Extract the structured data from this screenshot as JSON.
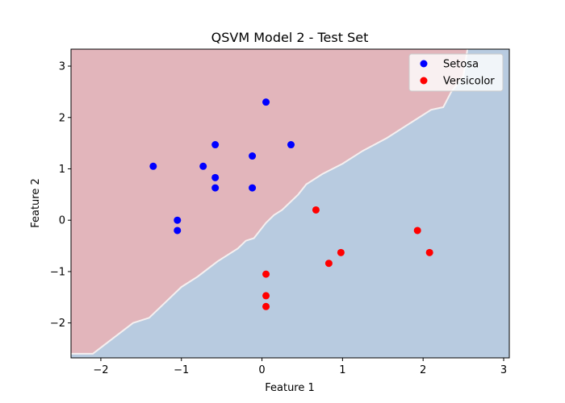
{
  "chart_data": {
    "type": "scatter",
    "title": "QSVM Model 2 - Test Set",
    "xlabel": "Feature 1",
    "ylabel": "Feature 2",
    "xlim": [
      -2.37,
      3.07
    ],
    "ylim": [
      -2.68,
      3.33
    ],
    "xticks": [
      -2,
      -1,
      0,
      1,
      2,
      3
    ],
    "yticks": [
      -2,
      -1,
      0,
      1,
      2,
      3
    ],
    "xtick_labels": [
      "−2",
      "−1",
      "0",
      "1",
      "2",
      "3"
    ],
    "ytick_labels": [
      "−2",
      "−1",
      "0",
      "1",
      "2",
      "3"
    ],
    "legend_position": "top-right",
    "decision_boundary": {
      "x": [
        -2.37,
        -2.1,
        -1.85,
        -1.6,
        -1.4,
        -1.2,
        -1.0,
        -0.8,
        -0.55,
        -0.3,
        -0.2,
        -0.1,
        0.0,
        0.05,
        0.15,
        0.25,
        0.45,
        0.55,
        0.75,
        1.0,
        1.25,
        1.55,
        1.85,
        2.1,
        2.25,
        2.35,
        2.5,
        2.55
      ],
      "y": [
        -2.6,
        -2.6,
        -2.3,
        -2.0,
        -1.9,
        -1.6,
        -1.3,
        -1.1,
        -0.8,
        -0.55,
        -0.4,
        -0.35,
        -0.15,
        -0.05,
        0.1,
        0.2,
        0.5,
        0.7,
        0.9,
        1.1,
        1.35,
        1.6,
        1.9,
        2.15,
        2.2,
        2.5,
        2.8,
        3.33
      ],
      "upper_region_color": "#e2b5bb",
      "lower_region_color": "#b8cbe0"
    },
    "series": [
      {
        "name": "Setosa",
        "color": "#0000ff",
        "x": [
          -1.35,
          -1.05,
          -1.05,
          -0.73,
          -0.58,
          -0.58,
          -0.58,
          -0.12,
          -0.12,
          0.05,
          0.36
        ],
        "y": [
          1.05,
          0.0,
          -0.2,
          1.05,
          1.47,
          0.83,
          0.63,
          1.25,
          0.63,
          2.3,
          1.47
        ]
      },
      {
        "name": "Versicolor",
        "color": "#ff0000",
        "x": [
          0.05,
          0.05,
          0.05,
          0.67,
          0.83,
          0.98,
          1.93,
          2.08
        ],
        "y": [
          -1.05,
          -1.47,
          -1.68,
          0.2,
          -0.84,
          -0.63,
          -0.2,
          -0.63
        ]
      }
    ]
  }
}
